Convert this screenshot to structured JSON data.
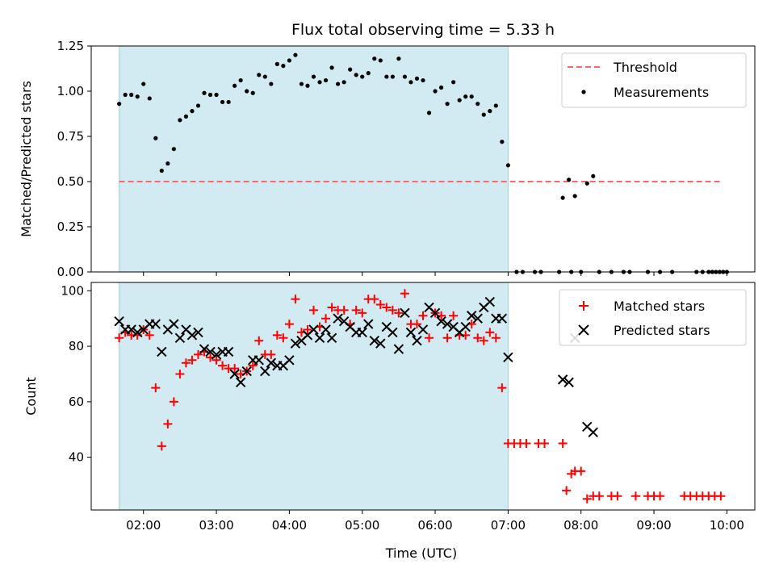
{
  "chart_data": [
    {
      "type": "scatter",
      "title": "Flux total observing time = 5.33 h",
      "ylabel": "Matched/Predicted stars",
      "ylim": [
        0,
        1.25
      ],
      "yticks": [
        0.0,
        0.25,
        0.5,
        0.75,
        1.0,
        1.25
      ],
      "ytick_labels": [
        "0.00",
        "0.25",
        "0.50",
        "0.75",
        "1.00",
        "1.25"
      ],
      "xlim": [
        "01:17",
        "10:23"
      ],
      "shaded_region": {
        "start": "01:40",
        "end": "07:00",
        "color": "#add8e6"
      },
      "threshold": {
        "name": "Threshold",
        "value": 0.5,
        "start": "01:40",
        "end": "09:55",
        "color": "#ff6666"
      },
      "legend": {
        "position": "upper right",
        "entries": [
          "Threshold",
          "Measurements"
        ]
      },
      "series": [
        {
          "name": "Measurements",
          "color": "#000000",
          "marker": "dot",
          "points": [
            [
              "01:40",
              0.93
            ],
            [
              "01:45",
              0.98
            ],
            [
              "01:50",
              0.98
            ],
            [
              "01:55",
              0.97
            ],
            [
              "02:00",
              1.04
            ],
            [
              "02:05",
              0.96
            ],
            [
              "02:10",
              0.74
            ],
            [
              "02:15",
              0.56
            ],
            [
              "02:20",
              0.6
            ],
            [
              "02:25",
              0.68
            ],
            [
              "02:30",
              0.84
            ],
            [
              "02:35",
              0.86
            ],
            [
              "02:40",
              0.89
            ],
            [
              "02:45",
              0.92
            ],
            [
              "02:50",
              0.99
            ],
            [
              "02:55",
              0.98
            ],
            [
              "03:00",
              0.98
            ],
            [
              "03:05",
              0.94
            ],
            [
              "03:10",
              0.94
            ],
            [
              "03:15",
              1.03
            ],
            [
              "03:20",
              1.06
            ],
            [
              "03:25",
              1.0
            ],
            [
              "03:30",
              0.99
            ],
            [
              "03:35",
              1.09
            ],
            [
              "03:40",
              1.08
            ],
            [
              "03:45",
              1.04
            ],
            [
              "03:50",
              1.15
            ],
            [
              "03:55",
              1.14
            ],
            [
              "04:00",
              1.17
            ],
            [
              "04:05",
              1.2
            ],
            [
              "04:10",
              1.04
            ],
            [
              "04:15",
              1.03
            ],
            [
              "04:20",
              1.08
            ],
            [
              "04:25",
              1.05
            ],
            [
              "04:30",
              1.06
            ],
            [
              "04:35",
              1.13
            ],
            [
              "04:40",
              1.04
            ],
            [
              "04:45",
              1.05
            ],
            [
              "04:50",
              1.12
            ],
            [
              "04:55",
              1.09
            ],
            [
              "05:00",
              1.08
            ],
            [
              "05:05",
              1.1
            ],
            [
              "05:10",
              1.18
            ],
            [
              "05:15",
              1.17
            ],
            [
              "05:20",
              1.08
            ],
            [
              "05:25",
              1.08
            ],
            [
              "05:30",
              1.18
            ],
            [
              "05:35",
              1.08
            ],
            [
              "05:40",
              1.05
            ],
            [
              "05:45",
              1.07
            ],
            [
              "05:50",
              1.06
            ],
            [
              "05:55",
              0.88
            ],
            [
              "06:00",
              1.0
            ],
            [
              "06:05",
              1.02
            ],
            [
              "06:10",
              0.93
            ],
            [
              "06:15",
              1.05
            ],
            [
              "06:20",
              0.95
            ],
            [
              "06:25",
              0.97
            ],
            [
              "06:30",
              0.97
            ],
            [
              "06:35",
              0.93
            ],
            [
              "06:40",
              0.87
            ],
            [
              "06:45",
              0.89
            ],
            [
              "06:50",
              0.92
            ],
            [
              "06:55",
              0.72
            ],
            [
              "07:00",
              0.59
            ],
            [
              "07:07",
              0.0
            ],
            [
              "07:12",
              0.0
            ],
            [
              "07:22",
              0.0
            ],
            [
              "07:27",
              0.0
            ],
            [
              "07:45",
              0.41
            ],
            [
              "07:50",
              0.51
            ],
            [
              "07:55",
              0.42
            ],
            [
              "08:05",
              0.49
            ],
            [
              "08:10",
              0.53
            ],
            [
              "07:42",
              0.0
            ],
            [
              "07:52",
              0.0
            ],
            [
              "08:00",
              0.0
            ],
            [
              "08:15",
              0.0
            ],
            [
              "08:25",
              0.0
            ],
            [
              "08:35",
              0.0
            ],
            [
              "08:40",
              0.0
            ],
            [
              "08:55",
              0.0
            ],
            [
              "09:05",
              0.0
            ],
            [
              "09:15",
              0.0
            ],
            [
              "09:35",
              0.0
            ],
            [
              "09:40",
              0.0
            ],
            [
              "09:45",
              0.0
            ],
            [
              "09:48",
              0.0
            ],
            [
              "09:51",
              0.0
            ],
            [
              "09:54",
              0.0
            ],
            [
              "09:57",
              0.0
            ],
            [
              "10:00",
              0.0
            ]
          ]
        }
      ]
    },
    {
      "type": "scatter",
      "xlabel": "Time (UTC)",
      "ylabel": "Count",
      "ylim": [
        21,
        103
      ],
      "yticks": [
        40,
        60,
        80,
        100
      ],
      "ytick_labels": [
        "40",
        "60",
        "80",
        "100"
      ],
      "xlim": [
        "01:17",
        "10:23"
      ],
      "xtick_labels": [
        "02:00",
        "03:00",
        "04:00",
        "05:00",
        "06:00",
        "07:00",
        "08:00",
        "09:00",
        "10:00"
      ],
      "shaded_region": {
        "start": "01:40",
        "end": "07:00",
        "color": "#add8e6"
      },
      "legend": {
        "position": "upper right",
        "entries": [
          "Matched stars",
          "Predicted stars"
        ]
      },
      "series": [
        {
          "name": "Matched stars",
          "color": "#ff0000",
          "marker": "plus",
          "points": [
            [
              "01:40",
              83
            ],
            [
              "01:45",
              85
            ],
            [
              "01:50",
              84
            ],
            [
              "01:55",
              84
            ],
            [
              "02:00",
              86
            ],
            [
              "02:05",
              84
            ],
            [
              "02:10",
              65
            ],
            [
              "02:15",
              44
            ],
            [
              "02:20",
              52
            ],
            [
              "02:25",
              60
            ],
            [
              "02:30",
              70
            ],
            [
              "02:35",
              74
            ],
            [
              "02:40",
              75
            ],
            [
              "02:45",
              77
            ],
            [
              "02:50",
              78
            ],
            [
              "02:55",
              76
            ],
            [
              "03:00",
              75
            ],
            [
              "03:05",
              73
            ],
            [
              "03:10",
              72
            ],
            [
              "03:15",
              72
            ],
            [
              "03:20",
              70
            ],
            [
              "03:25",
              71
            ],
            [
              "03:30",
              73
            ],
            [
              "03:35",
              82
            ],
            [
              "03:40",
              77
            ],
            [
              "03:45",
              77
            ],
            [
              "03:50",
              84
            ],
            [
              "03:55",
              83
            ],
            [
              "04:00",
              88
            ],
            [
              "04:05",
              97
            ],
            [
              "04:10",
              85
            ],
            [
              "04:15",
              86
            ],
            [
              "04:20",
              93
            ],
            [
              "04:25",
              87
            ],
            [
              "04:30",
              90
            ],
            [
              "04:35",
              94
            ],
            [
              "04:40",
              93
            ],
            [
              "04:45",
              93
            ],
            [
              "04:50",
              88
            ],
            [
              "04:55",
              93
            ],
            [
              "05:00",
              92
            ],
            [
              "05:05",
              97
            ],
            [
              "05:10",
              97
            ],
            [
              "05:15",
              95
            ],
            [
              "05:20",
              94
            ],
            [
              "05:25",
              93
            ],
            [
              "05:30",
              92
            ],
            [
              "05:35",
              99
            ],
            [
              "05:40",
              88
            ],
            [
              "05:45",
              88
            ],
            [
              "05:50",
              91
            ],
            [
              "05:55",
              83
            ],
            [
              "06:00",
              92
            ],
            [
              "06:05",
              91
            ],
            [
              "06:10",
              83
            ],
            [
              "06:15",
              91
            ],
            [
              "06:20",
              84
            ],
            [
              "06:25",
              84
            ],
            [
              "06:30",
              88
            ],
            [
              "06:35",
              83
            ],
            [
              "06:40",
              82
            ],
            [
              "06:45",
              85
            ],
            [
              "06:50",
              83
            ],
            [
              "06:55",
              65
            ],
            [
              "07:00",
              45
            ],
            [
              "07:05",
              45
            ],
            [
              "07:10",
              45
            ],
            [
              "07:15",
              45
            ],
            [
              "07:25",
              45
            ],
            [
              "07:30",
              45
            ],
            [
              "07:45",
              45
            ],
            [
              "07:48",
              28
            ],
            [
              "07:52",
              34
            ],
            [
              "07:55",
              35
            ],
            [
              "08:00",
              35
            ],
            [
              "08:05",
              25
            ],
            [
              "08:10",
              26
            ],
            [
              "08:15",
              26
            ],
            [
              "08:25",
              26
            ],
            [
              "08:30",
              26
            ],
            [
              "08:45",
              26
            ],
            [
              "08:55",
              26
            ],
            [
              "09:00",
              26
            ],
            [
              "09:05",
              26
            ],
            [
              "09:25",
              26
            ],
            [
              "09:30",
              26
            ],
            [
              "09:35",
              26
            ],
            [
              "09:40",
              26
            ],
            [
              "09:45",
              26
            ],
            [
              "09:50",
              26
            ],
            [
              "09:55",
              26
            ]
          ]
        },
        {
          "name": "Predicted stars",
          "color": "#000000",
          "marker": "x",
          "points": [
            [
              "01:40",
              89
            ],
            [
              "01:45",
              86
            ],
            [
              "01:50",
              86
            ],
            [
              "01:55",
              85
            ],
            [
              "02:00",
              86
            ],
            [
              "02:05",
              88
            ],
            [
              "02:10",
              88
            ],
            [
              "02:15",
              78
            ],
            [
              "02:20",
              86
            ],
            [
              "02:25",
              88
            ],
            [
              "02:30",
              83
            ],
            [
              "02:35",
              86
            ],
            [
              "02:40",
              84
            ],
            [
              "02:45",
              85
            ],
            [
              "02:50",
              79
            ],
            [
              "02:55",
              78
            ],
            [
              "03:00",
              77
            ],
            [
              "03:05",
              78
            ],
            [
              "03:10",
              78
            ],
            [
              "03:15",
              70
            ],
            [
              "03:20",
              67
            ],
            [
              "03:25",
              71
            ],
            [
              "03:30",
              75
            ],
            [
              "03:35",
              75
            ],
            [
              "03:40",
              71
            ],
            [
              "03:45",
              74
            ],
            [
              "03:50",
              73
            ],
            [
              "03:55",
              73
            ],
            [
              "04:00",
              75
            ],
            [
              "04:05",
              81
            ],
            [
              "04:10",
              82
            ],
            [
              "04:15",
              84
            ],
            [
              "04:20",
              86
            ],
            [
              "04:25",
              83
            ],
            [
              "04:30",
              86
            ],
            [
              "04:35",
              83
            ],
            [
              "04:40",
              90
            ],
            [
              "04:45",
              89
            ],
            [
              "04:50",
              87
            ],
            [
              "04:55",
              85
            ],
            [
              "05:00",
              85
            ],
            [
              "05:05",
              88
            ],
            [
              "05:10",
              82
            ],
            [
              "05:15",
              81
            ],
            [
              "05:20",
              87
            ],
            [
              "05:25",
              85
            ],
            [
              "05:30",
              79
            ],
            [
              "05:35",
              92
            ],
            [
              "05:40",
              85
            ],
            [
              "05:45",
              82
            ],
            [
              "05:50",
              86
            ],
            [
              "05:55",
              94
            ],
            [
              "06:00",
              92
            ],
            [
              "06:05",
              89
            ],
            [
              "06:10",
              88
            ],
            [
              "06:15",
              87
            ],
            [
              "06:20",
              85
            ],
            [
              "06:25",
              87
            ],
            [
              "06:30",
              91
            ],
            [
              "06:35",
              90
            ],
            [
              "06:40",
              94
            ],
            [
              "06:45",
              96
            ],
            [
              "06:50",
              90
            ],
            [
              "06:55",
              90
            ],
            [
              "07:00",
              76
            ],
            [
              "07:45",
              68
            ],
            [
              "07:50",
              67
            ],
            [
              "07:55",
              83
            ],
            [
              "08:05",
              51
            ],
            [
              "08:10",
              49
            ]
          ]
        }
      ]
    }
  ]
}
